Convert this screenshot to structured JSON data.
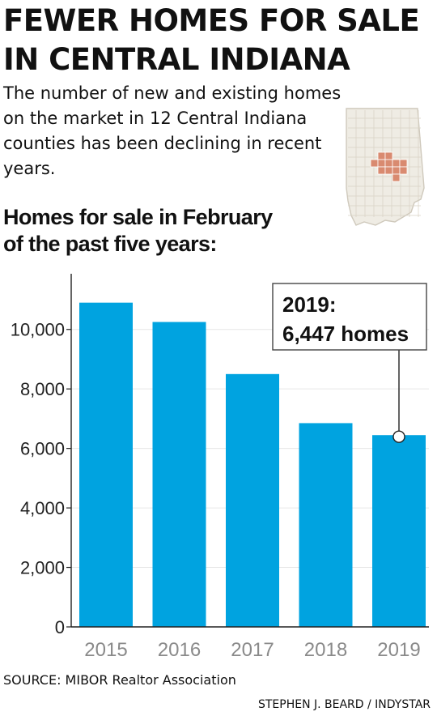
{
  "headline": {
    "line1": "FEWER HOMES FOR SALE",
    "line2": "IN CENTRAL INDIANA"
  },
  "intro": "The number of new and existing homes on the market in 12 Central Indiana counties has been declining in recent years.",
  "chart_title": {
    "line1": "Homes for sale in February",
    "line2": "of the past five years:"
  },
  "colors": {
    "bar": "#00a3e0",
    "axis": "#222222",
    "grid": "#e6e6e6",
    "tick_label": "#222222",
    "category_label": "#8a8a8a",
    "map_fill": "#efece4",
    "map_highlight": "#d98a70"
  },
  "map": {
    "icon": "indiana-state-map-icon"
  },
  "chart_data": {
    "type": "bar",
    "title": "Homes for sale in February of the past five years:",
    "xlabel": "",
    "ylabel": "",
    "categories": [
      "2015",
      "2016",
      "2017",
      "2018",
      "2019"
    ],
    "values": [
      10900,
      10250,
      8500,
      6850,
      6447
    ],
    "ylim": [
      0,
      11000
    ],
    "yticks": [
      0,
      2000,
      4000,
      6000,
      8000,
      10000
    ],
    "ytick_labels": [
      "0",
      "2,000",
      "4,000",
      "6,000",
      "8,000",
      "10,000"
    ],
    "grid": true,
    "annotation": {
      "category": "2019",
      "value": 6447,
      "line1": "2019:",
      "line2": "6,447 homes"
    }
  },
  "footer": {
    "source": "SOURCE: MIBOR Realtor Association",
    "credit": "STEPHEN J. BEARD / INDYSTAR"
  }
}
